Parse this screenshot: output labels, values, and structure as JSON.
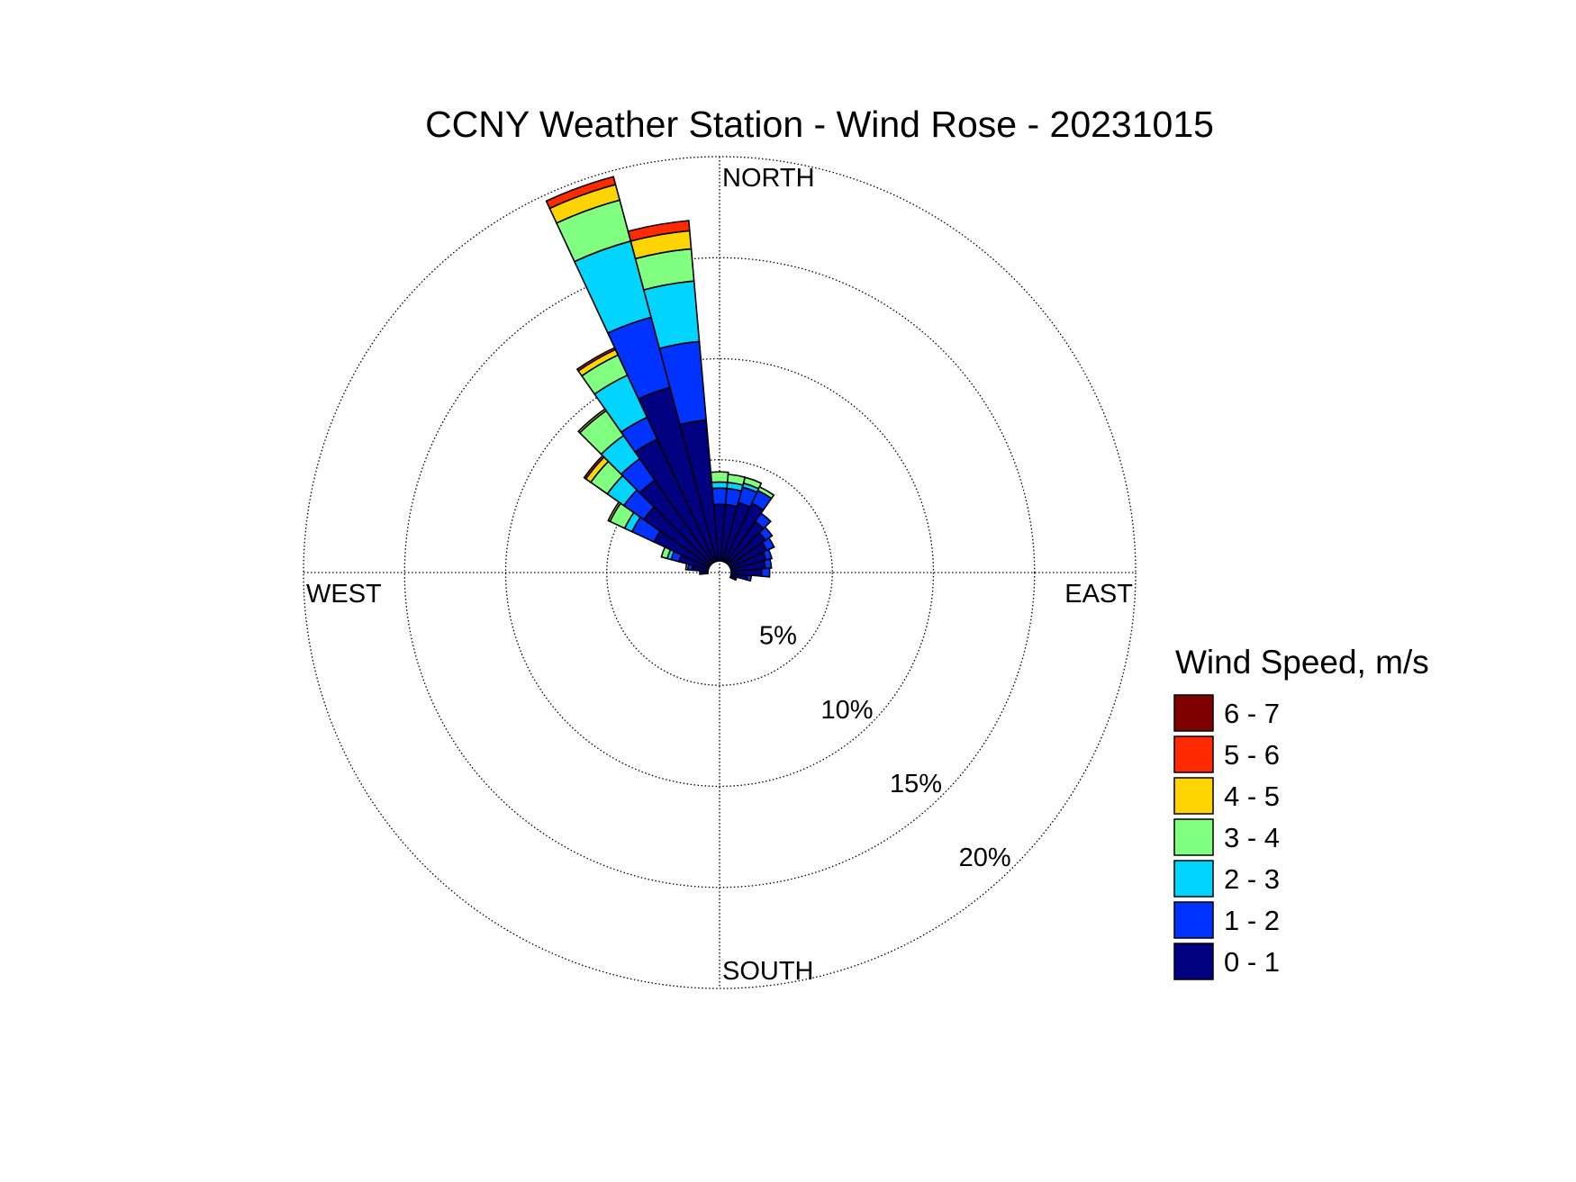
{
  "chart_data": {
    "type": "windrose",
    "title": "CCNY Weather Station - Wind Rose - 20231015",
    "direction_labels": [
      "NORTH",
      "EAST",
      "SOUTH",
      "WEST"
    ],
    "x": [
      270,
      280,
      290,
      300,
      310,
      320,
      330,
      340,
      350,
      0,
      10,
      20,
      30,
      40,
      50,
      60,
      70,
      80,
      90,
      100,
      110
    ],
    "rlim": [
      0,
      20
    ],
    "rticks": [
      {
        "value": 5,
        "label": "5%"
      },
      {
        "value": 10,
        "label": "10%"
      },
      {
        "value": 15,
        "label": "15%"
      },
      {
        "value": 20,
        "label": "20%"
      }
    ],
    "grid": true,
    "legend_title": "Wind Speed, m/s",
    "legend_position": "right",
    "series": [
      {
        "name": "0 - 1",
        "color": "#000080",
        "values": [
          0.4,
          0.8,
          1.5,
          3.0,
          4.0,
          5.0,
          6.7,
          8.9,
          7.0,
          2.8,
          2.8,
          3.0,
          3.2,
          2.5,
          2.2,
          2.0,
          1.8,
          1.7,
          1.5,
          0.8,
          0.3
        ]
      },
      {
        "name": "1 - 2",
        "color": "#0033ff",
        "values": [
          0,
          0.2,
          0.4,
          1.2,
          1.2,
          1.3,
          1.2,
          3.6,
          3.9,
          0.8,
          0.8,
          0.8,
          0.7,
          0.5,
          0.4,
          0.4,
          0.3,
          0.3,
          0.4,
          0.2,
          0
        ]
      },
      {
        "name": "2 - 3",
        "color": "#00d4ff",
        "values": [
          0,
          0,
          0.2,
          0.4,
          1.0,
          1.4,
          2.3,
          3.9,
          3.0,
          0.3,
          0.3,
          0.2,
          0,
          0,
          0,
          0,
          0,
          0,
          0,
          0,
          0
        ]
      },
      {
        "name": "3 - 4",
        "color": "#80ff80",
        "values": [
          0,
          0.1,
          0.3,
          0.8,
          1.0,
          1.5,
          1.1,
          2.1,
          1.6,
          0.5,
          0.4,
          0.3,
          0.2,
          0,
          0,
          0,
          0,
          0,
          0,
          0,
          0
        ]
      },
      {
        "name": "4 - 5",
        "color": "#ffd400",
        "values": [
          0,
          0,
          0,
          0.1,
          0.3,
          0.1,
          0.3,
          0.8,
          0.9,
          0,
          0,
          0,
          0,
          0,
          0,
          0,
          0,
          0,
          0,
          0,
          0
        ]
      },
      {
        "name": "5 - 6",
        "color": "#ff2a00",
        "values": [
          0,
          0,
          0,
          0,
          0.1,
          0,
          0.1,
          0.4,
          0.5,
          0,
          0,
          0,
          0,
          0,
          0,
          0,
          0,
          0,
          0,
          0,
          0
        ]
      },
      {
        "name": "6 - 7",
        "color": "#800000",
        "values": [
          0,
          0,
          0,
          0,
          0,
          0,
          0,
          0,
          0,
          0,
          0,
          0,
          0,
          0,
          0,
          0,
          0,
          0,
          0,
          0,
          0
        ]
      }
    ]
  }
}
